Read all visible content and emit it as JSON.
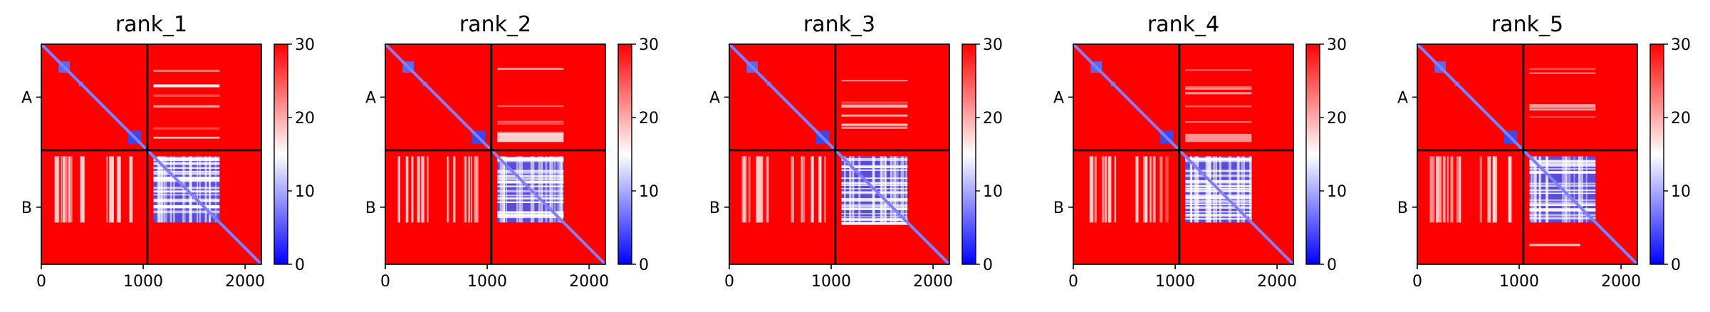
{
  "chart_data": [
    {
      "type": "heatmap",
      "title": "rank_1",
      "xticks": [
        "0",
        "1000",
        "2000"
      ],
      "xtick_values": [
        0,
        1000,
        2000
      ],
      "xlim": [
        0,
        2160
      ],
      "yticks": [
        "A",
        "B"
      ],
      "chain_boundary": 1040,
      "colorbar": {
        "min": 0,
        "max": 30,
        "ticks": [
          "0",
          "10",
          "20",
          "30"
        ],
        "tick_values": [
          0,
          10,
          20,
          30
        ],
        "colormap": "bwr"
      }
    },
    {
      "type": "heatmap",
      "title": "rank_2",
      "xticks": [
        "0",
        "1000",
        "2000"
      ],
      "xtick_values": [
        0,
        1000,
        2000
      ],
      "xlim": [
        0,
        2160
      ],
      "yticks": [
        "A",
        "B"
      ],
      "chain_boundary": 1040,
      "colorbar": {
        "min": 0,
        "max": 30,
        "ticks": [
          "0",
          "10",
          "20",
          "30"
        ],
        "tick_values": [
          0,
          10,
          20,
          30
        ],
        "colormap": "bwr"
      }
    },
    {
      "type": "heatmap",
      "title": "rank_3",
      "xticks": [
        "0",
        "1000",
        "2000"
      ],
      "xtick_values": [
        0,
        1000,
        2000
      ],
      "xlim": [
        0,
        2160
      ],
      "yticks": [
        "A",
        "B"
      ],
      "chain_boundary": 1040,
      "colorbar": {
        "min": 0,
        "max": 30,
        "ticks": [
          "0",
          "10",
          "20",
          "30"
        ],
        "tick_values": [
          0,
          10,
          20,
          30
        ],
        "colormap": "bwr"
      }
    },
    {
      "type": "heatmap",
      "title": "rank_4",
      "xticks": [
        "0",
        "1000",
        "2000"
      ],
      "xtick_values": [
        0,
        1000,
        2000
      ],
      "xlim": [
        0,
        2160
      ],
      "yticks": [
        "A",
        "B"
      ],
      "chain_boundary": 1040,
      "colorbar": {
        "min": 0,
        "max": 30,
        "ticks": [
          "0",
          "10",
          "20",
          "30"
        ],
        "tick_values": [
          0,
          10,
          20,
          30
        ],
        "colormap": "bwr"
      }
    },
    {
      "type": "heatmap",
      "title": "rank_5",
      "xticks": [
        "0",
        "1000",
        "2000"
      ],
      "xtick_values": [
        0,
        1000,
        2000
      ],
      "xlim": [
        0,
        2160
      ],
      "yticks": [
        "A",
        "B"
      ],
      "chain_boundary": 1040,
      "colorbar": {
        "min": 0,
        "max": 30,
        "ticks": [
          "0",
          "10",
          "20",
          "30"
        ],
        "tick_values": [
          0,
          10,
          20,
          30
        ],
        "colormap": "bwr"
      }
    }
  ],
  "colors": {
    "high": "#ff0000",
    "mid": "#ffffff",
    "low": "#0000ff",
    "diagonal": "#8080ff",
    "boundary": "#000000"
  }
}
